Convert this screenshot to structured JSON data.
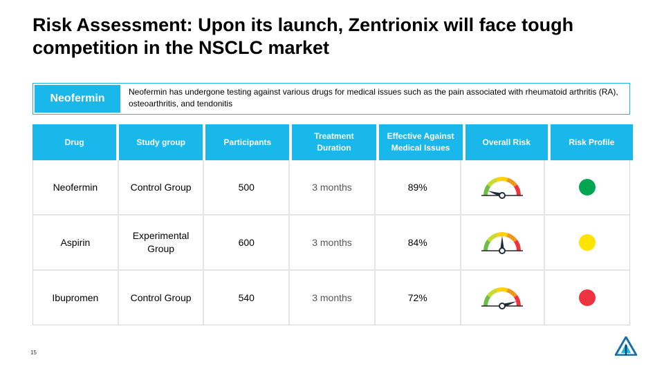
{
  "slide": {
    "title": "Risk Assessment: Upon its launch, Zentrionix will face tough competition in the NSCLC market",
    "page_number": "15"
  },
  "intro": {
    "label": "Neofermin",
    "text": "Neofermin has undergone testing against various drugs for medical issues such as the pain associated with rheumatoid arthritis (RA), osteoarthritis, and tendonitis"
  },
  "table": {
    "headers": [
      "Drug",
      "Study group",
      "Participants",
      "Treatment Duration",
      "Effective Against Medical Issues",
      "Overall Risk",
      "Risk Profile"
    ],
    "rows": [
      {
        "drug": "Neofermin",
        "group": "Control Group",
        "participants": "500",
        "duration": "3 months",
        "effective": "89%",
        "gauge_level": 0.1,
        "profile_color": "#00a651"
      },
      {
        "drug": "Aspirin",
        "group": "Experimental Group",
        "participants": "600",
        "duration": "3 months",
        "effective": "84%",
        "gauge_level": 0.5,
        "profile_color": "#ffe400"
      },
      {
        "drug": "Ibupromen",
        "group": "Control Group",
        "participants": "540",
        "duration": "3 months",
        "effective": "72%",
        "gauge_level": 0.9,
        "profile_color": "#ee3340"
      }
    ]
  },
  "colors": {
    "accent": "#1ab7ea",
    "gauge": [
      "#6cbe45",
      "#c8d92f",
      "#ffd200",
      "#f7941d",
      "#ee3340"
    ]
  },
  "icons": {
    "logo": "company-triangle-logo"
  }
}
